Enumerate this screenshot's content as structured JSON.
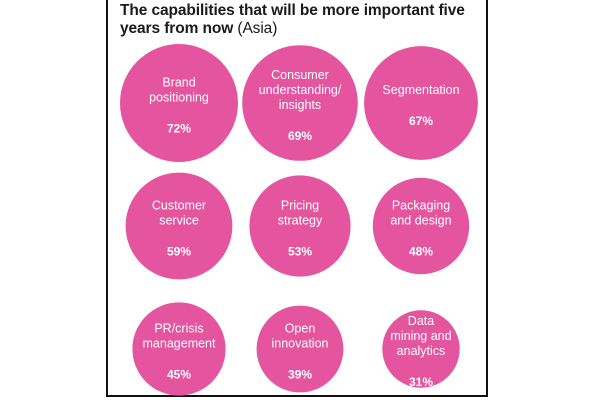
{
  "title": {
    "bold": "The capabilities that will be more important five years from now",
    "normal": " (Asia)"
  },
  "chart_data": {
    "type": "bubble",
    "color": "#e5559f",
    "title": "The capabilities that will be more important five years from now (Asia)",
    "items": [
      {
        "label": "Brand\npositioning",
        "value": 72,
        "display": "72%"
      },
      {
        "label": "Consumer\nunderstanding/\ninsights",
        "value": 69,
        "display": "69%"
      },
      {
        "label": "Segmentation",
        "value": 67,
        "display": "67%"
      },
      {
        "label": "Customer\nservice",
        "value": 59,
        "display": "59%"
      },
      {
        "label": "Pricing\nstrategy",
        "value": 53,
        "display": "53%"
      },
      {
        "label": "Packaging\nand design",
        "value": 48,
        "display": "48%"
      },
      {
        "label": "PR/crisis\nmanagement",
        "value": 45,
        "display": "45%"
      },
      {
        "label": "Open\ninnovation",
        "value": 39,
        "display": "39%"
      },
      {
        "label": "Data\nmining and\nanalytics",
        "value": 31,
        "display": "31%"
      }
    ]
  }
}
